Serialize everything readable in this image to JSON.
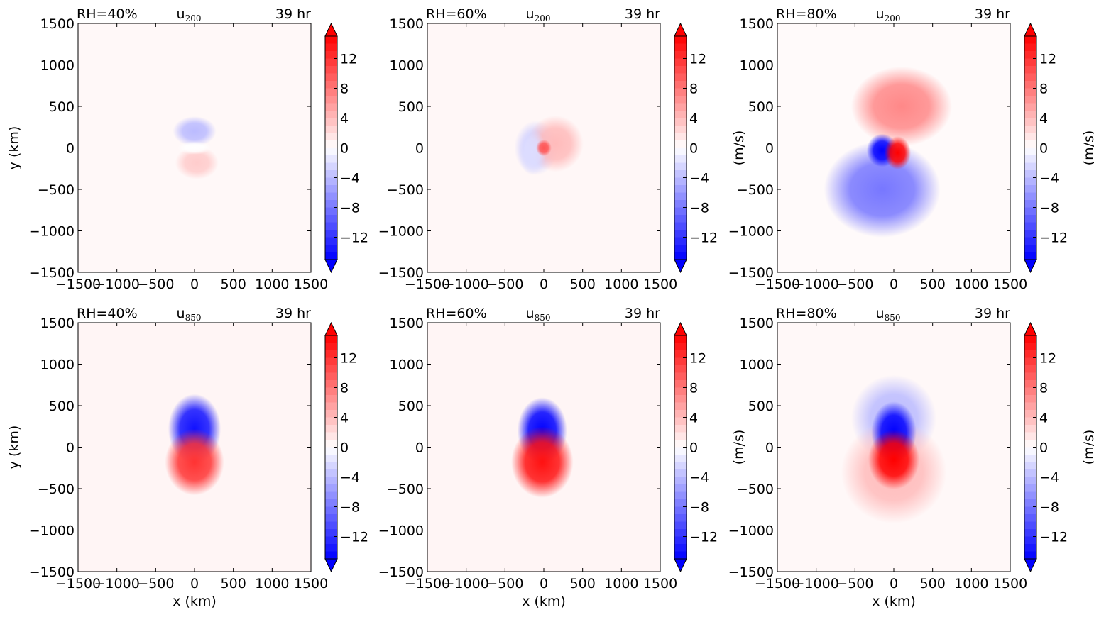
{
  "chart_data": [
    {
      "type": "heatmap",
      "field": "u200",
      "label_left": "RH=40%",
      "label_center": "u",
      "label_center_sub": "200",
      "label_right": "39 hr",
      "xlabel": "",
      "ylabel": "y (km)",
      "xlim": [
        -1500,
        1500
      ],
      "ylim": [
        -1500,
        1500
      ],
      "xticks": [
        "−1500",
        "−1000",
        "−500",
        "0",
        "500",
        "1000",
        "1500"
      ],
      "yticks": [
        "1500",
        "1000",
        "500",
        "0",
        "−500",
        "−1000",
        "−1500"
      ],
      "colorbar": {
        "label": "",
        "range": [
          -15,
          15
        ],
        "ticks": [
          "12",
          "8",
          "4",
          "0",
          "−4",
          "−8",
          "−12"
        ]
      },
      "background": 0.4,
      "features": [
        {
          "x": 0,
          "y": 200,
          "rx": 280,
          "ry": 180,
          "value": -4
        },
        {
          "x": 30,
          "y": -180,
          "rx": 280,
          "ry": 200,
          "value": 3
        },
        {
          "x": 0,
          "y": 0,
          "rx": 220,
          "ry": 80,
          "value": 0
        }
      ]
    },
    {
      "type": "heatmap",
      "field": "u200",
      "label_left": "RH=60%",
      "label_center": "u",
      "label_center_sub": "200",
      "label_right": "39 hr",
      "xlabel": "",
      "ylabel": "",
      "xlim": [
        -1500,
        1500
      ],
      "ylim": [
        -1500,
        1500
      ],
      "xticks": [
        "−1500",
        "−1000",
        "−500",
        "0",
        "500",
        "1000",
        "1500"
      ],
      "yticks": [
        "1500",
        "1000",
        "500",
        "0",
        "−500",
        "−1000",
        "−1500"
      ],
      "colorbar": {
        "label": "(m/s)",
        "range": [
          -15,
          15
        ],
        "ticks": [
          "12",
          "8",
          "4",
          "0",
          "−4",
          "−8",
          "−12"
        ]
      },
      "background": 0.5,
      "features": [
        {
          "x": -100,
          "y": 0,
          "rx": 280,
          "ry": 330,
          "value": -3
        },
        {
          "x": 150,
          "y": 50,
          "rx": 360,
          "ry": 340,
          "value": 4
        },
        {
          "x": -150,
          "y": -50,
          "rx": 180,
          "ry": 280,
          "value": -2
        },
        {
          "x": 0,
          "y": 0,
          "rx": 100,
          "ry": 100,
          "value": 10
        }
      ]
    },
    {
      "type": "heatmap",
      "field": "u200",
      "label_left": "RH=80%",
      "label_center": "u",
      "label_center_sub": "200",
      "label_right": "39 hr",
      "xlabel": "",
      "ylabel": "",
      "xlim": [
        -1500,
        1500
      ],
      "ylim": [
        -1500,
        1500
      ],
      "xticks": [
        "−1500",
        "−1000",
        "−500",
        "0",
        "500",
        "1000",
        "1500"
      ],
      "yticks": [
        "1500",
        "1000",
        "500",
        "0",
        "−500",
        "−1000",
        "−1500"
      ],
      "colorbar": {
        "label": "(m/s)",
        "range": [
          -15,
          15
        ],
        "ticks": [
          "12",
          "8",
          "4",
          "0",
          "−4",
          "−8",
          "−12"
        ]
      },
      "background": 0.3,
      "features": [
        {
          "x": 100,
          "y": 500,
          "rx": 650,
          "ry": 480,
          "value": 7
        },
        {
          "x": -150,
          "y": -500,
          "rx": 750,
          "ry": 580,
          "value": -8
        },
        {
          "x": -150,
          "y": -30,
          "rx": 200,
          "ry": 200,
          "value": -15
        },
        {
          "x": 50,
          "y": -60,
          "rx": 170,
          "ry": 200,
          "value": 15
        }
      ]
    },
    {
      "type": "heatmap",
      "field": "u850",
      "label_left": "RH=40%",
      "label_center": "u",
      "label_center_sub": "850",
      "label_right": "39 hr",
      "xlabel": "x (km)",
      "ylabel": "y (km)",
      "xlim": [
        -1500,
        1500
      ],
      "ylim": [
        -1500,
        1500
      ],
      "xticks": [
        "−1500",
        "−1000",
        "−500",
        "0",
        "500",
        "1000",
        "1500"
      ],
      "yticks": [
        "1500",
        "1000",
        "500",
        "0",
        "−500",
        "−1000",
        "−1500"
      ],
      "colorbar": {
        "label": "",
        "range": [
          -15,
          15
        ],
        "ticks": [
          "12",
          "8",
          "4",
          "0",
          "−4",
          "−8",
          "−12"
        ]
      },
      "background": 0.6,
      "features": [
        {
          "x": 0,
          "y": 220,
          "rx": 340,
          "ry": 420,
          "value": -14
        },
        {
          "x": 0,
          "y": -180,
          "rx": 380,
          "ry": 400,
          "value": 12
        }
      ]
    },
    {
      "type": "heatmap",
      "field": "u850",
      "label_left": "RH=60%",
      "label_center": "u",
      "label_center_sub": "850",
      "label_right": "39 hr",
      "xlabel": "x (km)",
      "ylabel": "",
      "xlim": [
        -1500,
        1500
      ],
      "ylim": [
        -1500,
        1500
      ],
      "xticks": [
        "−1500",
        "−1000",
        "−500",
        "0",
        "500",
        "1000",
        "1500"
      ],
      "yticks": [
        "1500",
        "1000",
        "500",
        "0",
        "−500",
        "−1000",
        "−1500"
      ],
      "colorbar": {
        "label": "(m/s)",
        "range": [
          -15,
          15
        ],
        "ticks": [
          "12",
          "8",
          "4",
          "0",
          "−4",
          "−8",
          "−12"
        ]
      },
      "background": 0.6,
      "features": [
        {
          "x": -20,
          "y": 200,
          "rx": 320,
          "ry": 400,
          "value": -15
        },
        {
          "x": -20,
          "y": -180,
          "rx": 400,
          "ry": 430,
          "value": 14
        }
      ]
    },
    {
      "type": "heatmap",
      "field": "u850",
      "label_left": "RH=80%",
      "label_center": "u",
      "label_center_sub": "850",
      "label_right": "39 hr",
      "xlabel": "x (km)",
      "ylabel": "",
      "xlim": [
        -1500,
        1500
      ],
      "ylim": [
        -1500,
        1500
      ],
      "xticks": [
        "−1500",
        "−1000",
        "−500",
        "0",
        "500",
        "1000",
        "1500"
      ],
      "yticks": [
        "1500",
        "1000",
        "500",
        "0",
        "−500",
        "−1000",
        "−1500"
      ],
      "colorbar": {
        "label": "(m/s)",
        "range": [
          -15,
          15
        ],
        "ticks": [
          "12",
          "8",
          "4",
          "0",
          "−4",
          "−8",
          "−12"
        ]
      },
      "background": 0.4,
      "features": [
        {
          "x": 0,
          "y": 350,
          "rx": 550,
          "ry": 520,
          "value": -4
        },
        {
          "x": 0,
          "y": -300,
          "rx": 680,
          "ry": 620,
          "value": 4
        },
        {
          "x": 0,
          "y": 180,
          "rx": 290,
          "ry": 370,
          "value": -15
        },
        {
          "x": 0,
          "y": -150,
          "rx": 330,
          "ry": 360,
          "value": 15
        }
      ]
    }
  ]
}
